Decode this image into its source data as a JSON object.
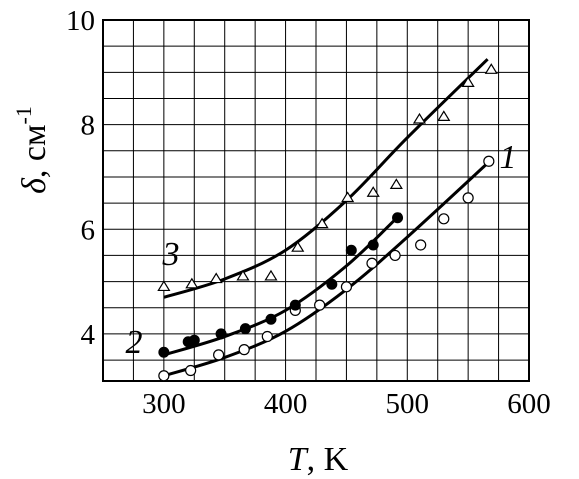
{
  "chart_data": {
    "type": "scatter",
    "xlabel_symbol": "T",
    "xlabel_unit": ", K",
    "ylabel_symbol": "δ",
    "ylabel_unit": ", см",
    "ylabel_exp": "-1",
    "xlim": [
      250,
      600
    ],
    "ylim": [
      3.1,
      10
    ],
    "xticks": [
      300,
      400,
      500,
      600
    ],
    "yticks": [
      4,
      6,
      8,
      10
    ],
    "grid": true,
    "series": [
      {
        "name": "1",
        "marker": "open-circle",
        "points": [
          [
            300,
            3.2
          ],
          [
            322,
            3.3
          ],
          [
            345,
            3.6
          ],
          [
            366,
            3.7
          ],
          [
            385,
            3.95
          ],
          [
            408,
            4.45
          ],
          [
            428,
            4.55
          ],
          [
            450,
            4.9
          ],
          [
            471,
            5.35
          ],
          [
            490,
            5.5
          ],
          [
            511,
            5.7
          ],
          [
            530,
            6.2
          ],
          [
            550,
            6.6
          ],
          [
            567,
            7.3
          ]
        ],
        "curve": [
          [
            300,
            3.2
          ],
          [
            350,
            3.55
          ],
          [
            400,
            4.05
          ],
          [
            450,
            4.85
          ],
          [
            500,
            5.85
          ],
          [
            570,
            7.35
          ]
        ]
      },
      {
        "name": "2",
        "marker": "filled-circle",
        "points": [
          [
            300,
            3.65
          ],
          [
            320,
            3.85
          ],
          [
            325,
            3.88
          ],
          [
            347,
            4.0
          ],
          [
            367,
            4.1
          ],
          [
            388,
            4.28
          ],
          [
            408,
            4.55
          ],
          [
            438,
            4.95
          ],
          [
            454,
            5.6
          ],
          [
            472,
            5.7
          ],
          [
            492,
            6.22
          ]
        ],
        "curve": [
          [
            300,
            3.6
          ],
          [
            350,
            3.95
          ],
          [
            400,
            4.45
          ],
          [
            450,
            5.3
          ],
          [
            495,
            6.3
          ]
        ]
      },
      {
        "name": "3",
        "marker": "open-triangle",
        "points": [
          [
            300,
            4.9
          ],
          [
            323,
            4.95
          ],
          [
            343,
            5.05
          ],
          [
            365,
            5.1
          ],
          [
            388,
            5.1
          ],
          [
            410,
            5.65
          ],
          [
            430,
            6.1
          ],
          [
            451,
            6.6
          ],
          [
            472,
            6.7
          ],
          [
            491,
            6.85
          ],
          [
            510,
            8.1
          ],
          [
            530,
            8.15
          ],
          [
            550,
            8.8
          ],
          [
            569,
            9.05
          ]
        ],
        "curve": [
          [
            300,
            4.7
          ],
          [
            350,
            5.05
          ],
          [
            400,
            5.6
          ],
          [
            450,
            6.55
          ],
          [
            500,
            7.75
          ],
          [
            566,
            9.25
          ]
        ]
      }
    ]
  }
}
